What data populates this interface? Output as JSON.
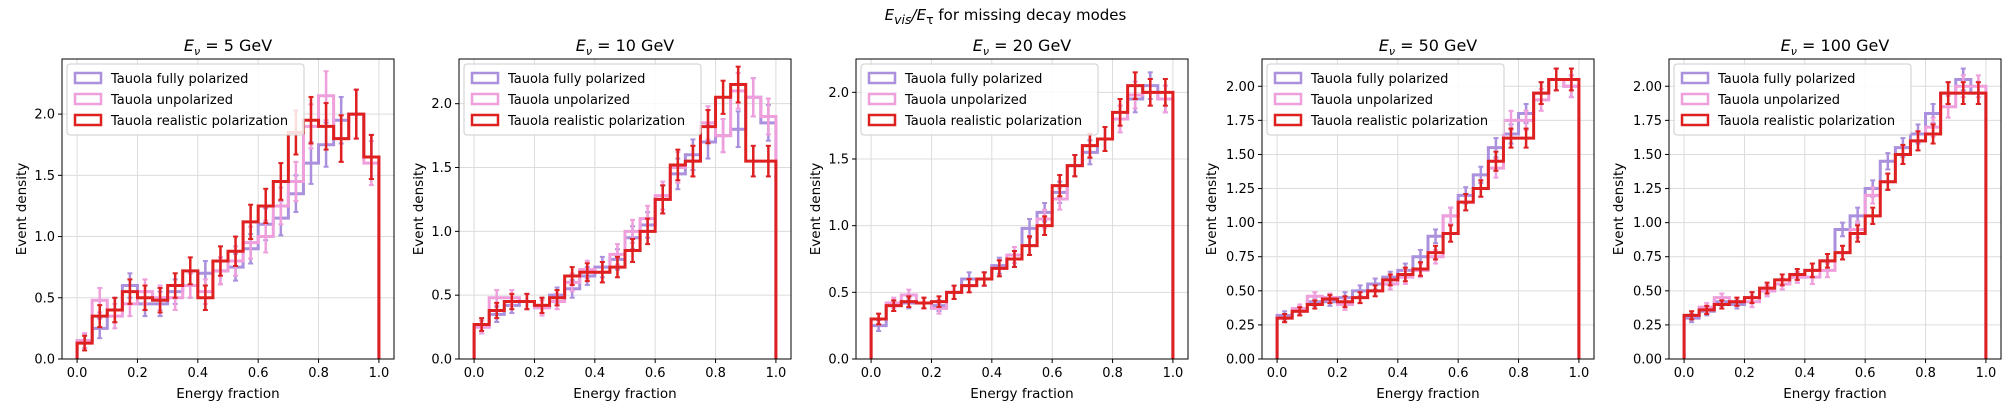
{
  "figure": {
    "suptitle_parts": [
      "E",
      "vis",
      "/E",
      "τ",
      " for missing decay modes"
    ]
  },
  "style": {
    "colors": {
      "fully": "#aa90dd",
      "unpol": "#ee9fdc",
      "real": "#de2020"
    }
  },
  "chart_data": [
    {
      "type": "step-histogram",
      "title_energy": "5",
      "title_unit": "GeV",
      "xlabel": "Energy fraction",
      "ylabel": "Event density",
      "xlim": [
        -0.05,
        1.05
      ],
      "ylim": [
        0,
        2.45
      ],
      "xticks": [
        0.0,
        0.2,
        0.4,
        0.6,
        0.8,
        1.0
      ],
      "yticks": [
        0.0,
        0.5,
        1.0,
        1.5,
        2.0
      ],
      "ytick_decimals": 1,
      "legend": "upper-left",
      "grid": true,
      "bin_edges": [
        0,
        0.05,
        0.1,
        0.15,
        0.2,
        0.25,
        0.3,
        0.35,
        0.4,
        0.45,
        0.5,
        0.55,
        0.6,
        0.65,
        0.7,
        0.75,
        0.8,
        0.85,
        0.9,
        0.95,
        1.0
      ],
      "series": [
        {
          "name": "Tauola fully polarized",
          "key": "fully",
          "values": [
            0.15,
            0.25,
            0.4,
            0.6,
            0.45,
            0.45,
            0.55,
            0.6,
            0.7,
            0.72,
            0.75,
            0.9,
            1.1,
            1.15,
            1.35,
            1.6,
            1.75,
            1.95,
            2.0,
            1.65
          ],
          "errors": [
            0.06,
            0.08,
            0.1,
            0.1,
            0.1,
            0.1,
            0.1,
            0.1,
            0.1,
            0.11,
            0.11,
            0.12,
            0.13,
            0.14,
            0.15,
            0.17,
            0.18,
            0.19,
            0.2,
            0.18
          ]
        },
        {
          "name": "Tauola unpolarized",
          "key": "unpol",
          "values": [
            0.15,
            0.48,
            0.35,
            0.45,
            0.55,
            0.5,
            0.5,
            0.6,
            0.55,
            0.72,
            0.8,
            0.95,
            1.0,
            1.25,
            1.45,
            1.9,
            2.15,
            1.8,
            2.0,
            1.6
          ],
          "errors": [
            0.06,
            0.1,
            0.1,
            0.1,
            0.1,
            0.1,
            0.1,
            0.1,
            0.1,
            0.11,
            0.12,
            0.13,
            0.13,
            0.15,
            0.16,
            0.18,
            0.2,
            0.19,
            0.2,
            0.18
          ]
        },
        {
          "name": "Tauola realistic polarization",
          "key": "real",
          "values": [
            0.13,
            0.35,
            0.4,
            0.55,
            0.5,
            0.48,
            0.6,
            0.72,
            0.5,
            0.8,
            0.88,
            1.12,
            1.25,
            1.45,
            1.85,
            1.95,
            1.9,
            1.8,
            2.0,
            1.65
          ],
          "errors": [
            0.06,
            0.09,
            0.1,
            0.1,
            0.1,
            0.1,
            0.1,
            0.11,
            0.1,
            0.12,
            0.12,
            0.14,
            0.14,
            0.15,
            0.18,
            0.19,
            0.19,
            0.19,
            0.2,
            0.18
          ]
        }
      ]
    },
    {
      "type": "step-histogram",
      "title_energy": "10",
      "title_unit": "GeV",
      "xlabel": "Energy fraction",
      "ylabel": "Event density",
      "xlim": [
        -0.05,
        1.05
      ],
      "ylim": [
        0,
        2.35
      ],
      "xticks": [
        0.0,
        0.2,
        0.4,
        0.6,
        0.8,
        1.0
      ],
      "yticks": [
        0.0,
        0.5,
        1.0,
        1.5,
        2.0
      ],
      "ytick_decimals": 1,
      "legend": "upper-left",
      "grid": true,
      "bin_edges": [
        0,
        0.05,
        0.1,
        0.15,
        0.2,
        0.25,
        0.3,
        0.35,
        0.4,
        0.45,
        0.5,
        0.55,
        0.6,
        0.65,
        0.7,
        0.75,
        0.8,
        0.85,
        0.9,
        0.95,
        1.0
      ],
      "series": [
        {
          "name": "Tauola fully polarized",
          "key": "fully",
          "values": [
            0.25,
            0.35,
            0.42,
            0.45,
            0.42,
            0.5,
            0.55,
            0.65,
            0.72,
            0.78,
            0.95,
            1.05,
            1.25,
            1.45,
            1.6,
            1.7,
            1.75,
            1.8,
            2.05,
            1.85
          ],
          "errors": [
            0.05,
            0.06,
            0.06,
            0.06,
            0.06,
            0.06,
            0.07,
            0.07,
            0.08,
            0.08,
            0.09,
            0.1,
            0.11,
            0.12,
            0.12,
            0.13,
            0.13,
            0.14,
            0.15,
            0.14
          ]
        },
        {
          "name": "Tauola unpolarized",
          "key": "unpol",
          "values": [
            0.25,
            0.48,
            0.48,
            0.45,
            0.4,
            0.45,
            0.6,
            0.7,
            0.68,
            0.82,
            1.0,
            1.1,
            1.28,
            1.5,
            1.55,
            1.85,
            1.75,
            2.1,
            2.05,
            1.9
          ],
          "errors": [
            0.05,
            0.06,
            0.06,
            0.06,
            0.06,
            0.06,
            0.07,
            0.07,
            0.08,
            0.08,
            0.09,
            0.1,
            0.11,
            0.12,
            0.12,
            0.13,
            0.13,
            0.14,
            0.15,
            0.14
          ]
        },
        {
          "name": "Tauola realistic polarization",
          "key": "real",
          "values": [
            0.27,
            0.38,
            0.45,
            0.45,
            0.42,
            0.48,
            0.65,
            0.68,
            0.68,
            0.72,
            0.85,
            1.0,
            1.25,
            1.52,
            1.55,
            1.82,
            2.05,
            2.15,
            1.55,
            1.55
          ],
          "errors": [
            0.05,
            0.06,
            0.06,
            0.06,
            0.06,
            0.06,
            0.07,
            0.07,
            0.08,
            0.08,
            0.09,
            0.1,
            0.11,
            0.12,
            0.12,
            0.13,
            0.13,
            0.14,
            0.12,
            0.12
          ]
        }
      ]
    },
    {
      "type": "step-histogram",
      "title_energy": "20",
      "title_unit": "GeV",
      "xlabel": "Energy fraction",
      "ylabel": "Event density",
      "xlim": [
        -0.05,
        1.05
      ],
      "ylim": [
        0,
        2.25
      ],
      "xticks": [
        0.0,
        0.2,
        0.4,
        0.6,
        0.8,
        1.0
      ],
      "yticks": [
        0.0,
        0.5,
        1.0,
        1.5,
        2.0
      ],
      "ytick_decimals": 1,
      "legend": "upper-left",
      "grid": true,
      "bin_edges": [
        0,
        0.05,
        0.1,
        0.15,
        0.2,
        0.25,
        0.3,
        0.35,
        0.4,
        0.45,
        0.5,
        0.55,
        0.6,
        0.65,
        0.7,
        0.75,
        0.8,
        0.85,
        0.9,
        0.95,
        1.0
      ],
      "series": [
        {
          "name": "Tauola fully polarized",
          "key": "fully",
          "values": [
            0.25,
            0.4,
            0.42,
            0.42,
            0.4,
            0.5,
            0.6,
            0.6,
            0.7,
            0.75,
            0.98,
            1.1,
            1.25,
            1.45,
            1.55,
            1.65,
            1.8,
            1.95,
            2.05,
            1.95
          ],
          "errors": [
            0.04,
            0.04,
            0.04,
            0.04,
            0.04,
            0.05,
            0.05,
            0.05,
            0.06,
            0.06,
            0.07,
            0.07,
            0.08,
            0.08,
            0.09,
            0.09,
            0.1,
            0.1,
            0.1,
            0.1
          ]
        },
        {
          "name": "Tauola unpolarized",
          "key": "unpol",
          "values": [
            0.3,
            0.42,
            0.48,
            0.42,
            0.38,
            0.5,
            0.55,
            0.6,
            0.68,
            0.78,
            0.85,
            1.05,
            1.2,
            1.45,
            1.6,
            1.65,
            1.8,
            1.98,
            2.0,
            1.95
          ],
          "errors": [
            0.04,
            0.04,
            0.04,
            0.04,
            0.04,
            0.05,
            0.05,
            0.05,
            0.06,
            0.06,
            0.07,
            0.07,
            0.08,
            0.08,
            0.09,
            0.09,
            0.1,
            0.1,
            0.1,
            0.1
          ]
        },
        {
          "name": "Tauola realistic polarization",
          "key": "real",
          "values": [
            0.3,
            0.4,
            0.43,
            0.42,
            0.43,
            0.5,
            0.55,
            0.6,
            0.68,
            0.75,
            0.85,
            1.0,
            1.3,
            1.45,
            1.6,
            1.65,
            1.85,
            2.05,
            2.0,
            2.0
          ],
          "errors": [
            0.04,
            0.04,
            0.04,
            0.04,
            0.04,
            0.05,
            0.05,
            0.05,
            0.06,
            0.06,
            0.07,
            0.07,
            0.08,
            0.08,
            0.09,
            0.09,
            0.1,
            0.1,
            0.1,
            0.1
          ]
        }
      ]
    },
    {
      "type": "step-histogram",
      "title_energy": "50",
      "title_unit": "GeV",
      "xlabel": "Energy fraction",
      "ylabel": "Event density",
      "xlim": [
        -0.05,
        1.05
      ],
      "ylim": [
        0,
        2.2
      ],
      "xticks": [
        0.0,
        0.2,
        0.4,
        0.6,
        0.8,
        1.0
      ],
      "yticks": [
        0.0,
        0.25,
        0.5,
        0.75,
        1.0,
        1.25,
        1.5,
        1.75,
        2.0
      ],
      "ytick_decimals": 2,
      "legend": "upper-left",
      "grid": true,
      "bin_edges": [
        0,
        0.05,
        0.1,
        0.15,
        0.2,
        0.25,
        0.3,
        0.35,
        0.4,
        0.45,
        0.5,
        0.55,
        0.6,
        0.65,
        0.7,
        0.75,
        0.8,
        0.85,
        0.9,
        0.95,
        1.0
      ],
      "series": [
        {
          "name": "Tauola fully polarized",
          "key": "fully",
          "values": [
            0.32,
            0.35,
            0.42,
            0.42,
            0.45,
            0.5,
            0.55,
            0.6,
            0.65,
            0.75,
            0.9,
            1.05,
            1.2,
            1.35,
            1.55,
            1.65,
            1.8,
            1.95,
            2.05,
            2.0
          ],
          "errors": [
            0.03,
            0.03,
            0.03,
            0.03,
            0.04,
            0.04,
            0.04,
            0.04,
            0.05,
            0.05,
            0.05,
            0.06,
            0.06,
            0.06,
            0.07,
            0.07,
            0.07,
            0.08,
            0.08,
            0.08
          ]
        },
        {
          "name": "Tauola unpolarized",
          "key": "unpol",
          "values": [
            0.3,
            0.37,
            0.46,
            0.45,
            0.4,
            0.45,
            0.5,
            0.55,
            0.6,
            0.65,
            0.75,
            1.05,
            1.15,
            1.25,
            1.4,
            1.75,
            1.75,
            1.9,
            2.05,
            2.0
          ],
          "errors": [
            0.03,
            0.03,
            0.03,
            0.03,
            0.04,
            0.04,
            0.04,
            0.04,
            0.05,
            0.05,
            0.05,
            0.06,
            0.06,
            0.06,
            0.07,
            0.07,
            0.07,
            0.08,
            0.08,
            0.08
          ]
        },
        {
          "name": "Tauola realistic polarization",
          "key": "real",
          "values": [
            0.3,
            0.35,
            0.4,
            0.44,
            0.42,
            0.45,
            0.5,
            0.58,
            0.62,
            0.66,
            0.78,
            0.92,
            1.15,
            1.25,
            1.45,
            1.62,
            1.62,
            1.95,
            2.05,
            2.05
          ],
          "errors": [
            0.03,
            0.03,
            0.03,
            0.03,
            0.04,
            0.04,
            0.04,
            0.04,
            0.05,
            0.05,
            0.05,
            0.06,
            0.06,
            0.06,
            0.07,
            0.07,
            0.07,
            0.08,
            0.08,
            0.08
          ]
        }
      ]
    },
    {
      "type": "step-histogram",
      "title_energy": "100",
      "title_unit": "GeV",
      "xlabel": "Energy fraction",
      "ylabel": "Event density",
      "xlim": [
        -0.05,
        1.05
      ],
      "ylim": [
        0,
        2.2
      ],
      "xticks": [
        0.0,
        0.2,
        0.4,
        0.6,
        0.8,
        1.0
      ],
      "yticks": [
        0.0,
        0.25,
        0.5,
        0.75,
        1.0,
        1.25,
        1.5,
        1.75,
        2.0
      ],
      "ytick_decimals": 2,
      "legend": "upper-left",
      "grid": true,
      "bin_edges": [
        0,
        0.05,
        0.1,
        0.15,
        0.2,
        0.25,
        0.3,
        0.35,
        0.4,
        0.45,
        0.5,
        0.55,
        0.6,
        0.65,
        0.7,
        0.75,
        0.8,
        0.85,
        0.9,
        0.95,
        1.0
      ],
      "series": [
        {
          "name": "Tauola fully polarized",
          "key": "fully",
          "values": [
            0.3,
            0.35,
            0.42,
            0.4,
            0.45,
            0.5,
            0.55,
            0.6,
            0.65,
            0.72,
            0.95,
            1.05,
            1.25,
            1.45,
            1.55,
            1.65,
            1.8,
            1.95,
            2.05,
            1.95
          ],
          "errors": [
            0.03,
            0.03,
            0.03,
            0.03,
            0.04,
            0.04,
            0.04,
            0.04,
            0.05,
            0.05,
            0.05,
            0.06,
            0.06,
            0.06,
            0.07,
            0.07,
            0.07,
            0.08,
            0.08,
            0.08
          ]
        },
        {
          "name": "Tauola unpolarized",
          "key": "unpol",
          "values": [
            0.32,
            0.38,
            0.45,
            0.42,
            0.42,
            0.5,
            0.55,
            0.6,
            0.6,
            0.65,
            0.78,
            0.95,
            1.2,
            1.3,
            1.5,
            1.6,
            1.7,
            1.85,
            2.0,
            2.0
          ],
          "errors": [
            0.03,
            0.03,
            0.03,
            0.03,
            0.04,
            0.04,
            0.04,
            0.04,
            0.05,
            0.05,
            0.05,
            0.06,
            0.06,
            0.06,
            0.07,
            0.07,
            0.07,
            0.08,
            0.08,
            0.08
          ]
        },
        {
          "name": "Tauola realistic polarization",
          "key": "real",
          "values": [
            0.32,
            0.36,
            0.4,
            0.42,
            0.45,
            0.52,
            0.58,
            0.62,
            0.65,
            0.72,
            0.78,
            0.92,
            1.05,
            1.3,
            1.5,
            1.6,
            1.65,
            1.95,
            1.95,
            1.95
          ],
          "errors": [
            0.03,
            0.03,
            0.03,
            0.03,
            0.04,
            0.04,
            0.04,
            0.04,
            0.05,
            0.05,
            0.05,
            0.06,
            0.06,
            0.06,
            0.07,
            0.07,
            0.07,
            0.08,
            0.08,
            0.08
          ]
        }
      ]
    }
  ]
}
